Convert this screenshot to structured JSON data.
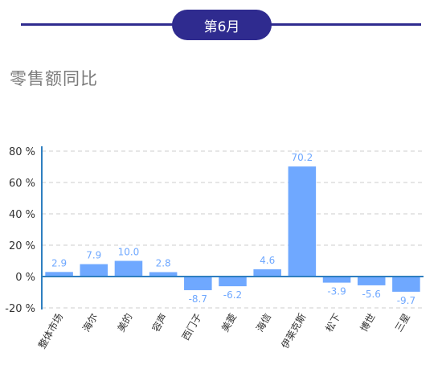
{
  "header": {
    "month_label": "第6月"
  },
  "chart_data": {
    "type": "bar",
    "title": "零售额同比",
    "categories": [
      "整体市场",
      "海尔",
      "美的",
      "容声",
      "西门子",
      "美菱",
      "海信",
      "伊莱克斯",
      "松下",
      "博世",
      "三星"
    ],
    "values": [
      2.9,
      7.9,
      10.0,
      2.8,
      -8.7,
      -6.2,
      4.6,
      70.2,
      -3.9,
      -5.6,
      -9.7
    ],
    "value_labels": [
      "2.9",
      "7.9",
      "10.0",
      "2.8",
      "-8.7",
      "-6.2",
      "4.6",
      "70.2",
      "-3.9",
      "-5.6",
      "-9.7"
    ],
    "y_ticks": [
      80,
      60,
      40,
      20,
      0,
      -20
    ],
    "y_tick_labels": [
      "80 %",
      "60 %",
      "40 %",
      "20 %",
      "0 %",
      "-20 %"
    ],
    "ylim": [
      -20,
      80
    ],
    "grid": true,
    "colors": {
      "bar": "#6fa8ff",
      "label": "#6fa8ff",
      "axis": "#2f7fc0",
      "grid": "#cccccc",
      "tick_text": "#333333"
    }
  }
}
